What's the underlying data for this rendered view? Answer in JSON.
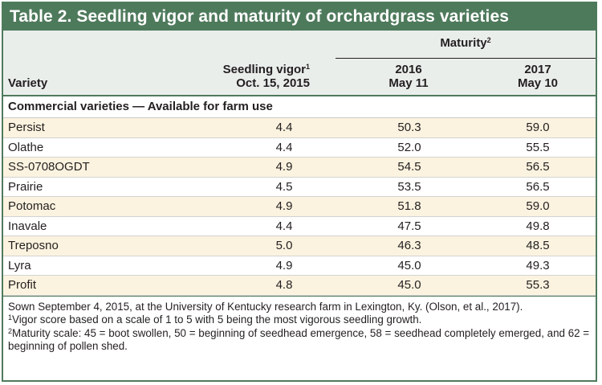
{
  "table": {
    "title": "Table 2. Seedling vigor and maturity of orchardgrass varieties",
    "header": {
      "variety": "Variety",
      "vigor_line1": "Seedling vigor",
      "vigor_mark": "1",
      "vigor_line2": "Oct. 15, 2015",
      "maturity": "Maturity",
      "maturity_mark": "2",
      "y2016_year": "2016",
      "y2016_date": "May 11",
      "y2017_year": "2017",
      "y2017_date": "May 10"
    },
    "section_label": "Commercial varieties — Available for farm use",
    "rows": [
      {
        "variety": "Persist",
        "vigor": "4.4",
        "m2016": "50.3",
        "m2017": "59.0"
      },
      {
        "variety": "Olathe",
        "vigor": "4.4",
        "m2016": "52.0",
        "m2017": "55.5"
      },
      {
        "variety": "SS-0708OGDT",
        "vigor": "4.9",
        "m2016": "54.5",
        "m2017": "56.5"
      },
      {
        "variety": "Prairie",
        "vigor": "4.5",
        "m2016": "53.5",
        "m2017": "56.5"
      },
      {
        "variety": "Potomac",
        "vigor": "4.9",
        "m2016": "51.8",
        "m2017": "59.0"
      },
      {
        "variety": "Inavale",
        "vigor": "4.4",
        "m2016": "47.5",
        "m2017": "49.8"
      },
      {
        "variety": "Treposno",
        "vigor": "5.0",
        "m2016": "46.3",
        "m2017": "48.5"
      },
      {
        "variety": "Lyra",
        "vigor": "4.9",
        "m2016": "45.0",
        "m2017": "49.3"
      },
      {
        "variety": "Profit",
        "vigor": "4.8",
        "m2016": "45.0",
        "m2017": "55.3"
      }
    ],
    "notes": {
      "sown": "Sown September 4, 2015, at the University of Kentucky research farm in Lexington, Ky. (Olson, et al., 2017).",
      "note1_mark": "1",
      "note1": "Vigor score based on a scale of 1 to 5 with 5 being the most vigorous seedling growth.",
      "note2_mark": "2",
      "note2": "Maturity scale: 45 = boot swollen, 50 = beginning of seedhead emergence, 58 = seedhead completely emerged, and 62 = beginning of pollen shed."
    },
    "colors": {
      "header_green": "#4e7a5c",
      "header_band": "#eaeeeb",
      "row_shade": "#fbf3df"
    }
  }
}
